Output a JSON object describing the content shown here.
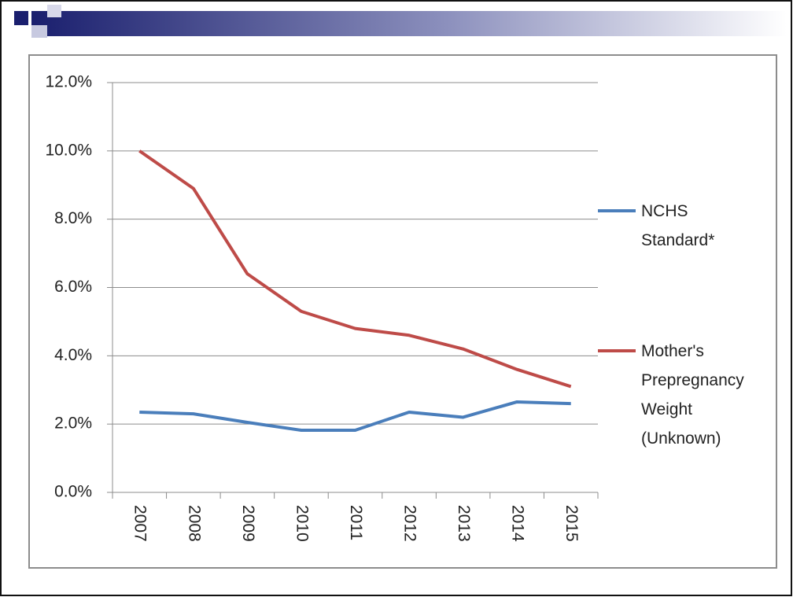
{
  "chart_data": {
    "type": "line",
    "categories": [
      "2007",
      "2008",
      "2009",
      "2010",
      "2011",
      "2012",
      "2013",
      "2014",
      "2015"
    ],
    "series": [
      {
        "name": "NCHS Standard*",
        "color": "#4a7ebb",
        "values": [
          2.35,
          2.3,
          2.05,
          1.82,
          1.82,
          2.35,
          2.2,
          2.65,
          2.6
        ]
      },
      {
        "name": "Mother's Prepregnancy Weight (Unknown)",
        "color": "#be4b48",
        "values": [
          10.0,
          8.9,
          6.4,
          5.3,
          4.8,
          4.6,
          4.2,
          3.6,
          3.1
        ]
      }
    ],
    "ylim": [
      0,
      12
    ],
    "yticks": [
      {
        "value": 0,
        "label": "0.0%"
      },
      {
        "value": 2,
        "label": "2.0%"
      },
      {
        "value": 4,
        "label": "4.0%"
      },
      {
        "value": 6,
        "label": "6.0%"
      },
      {
        "value": 8,
        "label": "8.0%"
      },
      {
        "value": 10,
        "label": "10.0%"
      },
      {
        "value": 12,
        "label": "12.0%"
      }
    ],
    "grid": true,
    "legend": "right"
  }
}
